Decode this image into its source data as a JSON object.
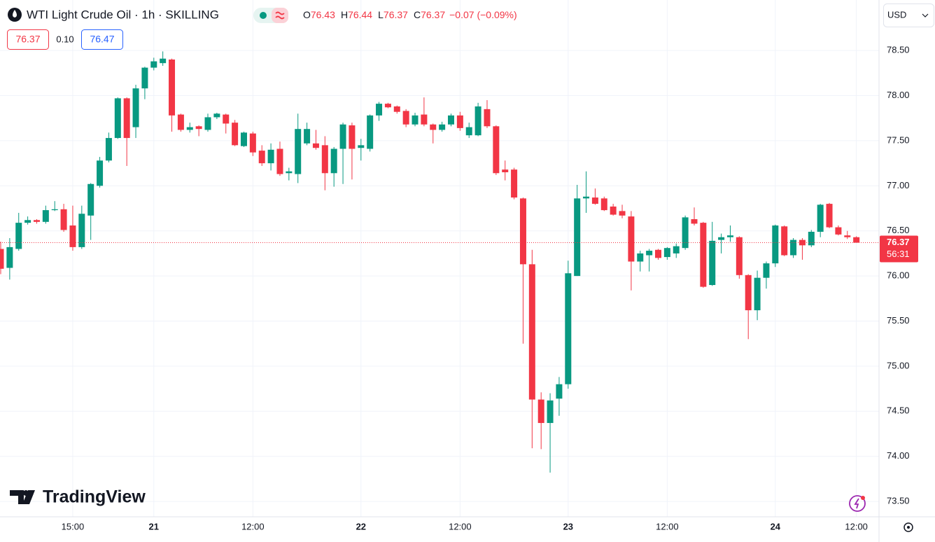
{
  "header": {
    "title": "WTI Light Crude Oil · 1h · SKILLING",
    "ohlc_labels": [
      "O",
      "H",
      "L",
      "C"
    ],
    "change": "−0.07 (−0.09%)",
    "bid": "76.37",
    "spread": "0.10",
    "ask": "76.47",
    "currency": "USD",
    "countdown": "56:31",
    "brand": "TradingView"
  },
  "chart_data": {
    "type": "candlestick",
    "up_color": "#089981",
    "down_color": "#f23645",
    "grid": true,
    "ylim": [
      73.33,
      79.06
    ],
    "yticks": [
      {
        "value": 73.5,
        "label": "73.50"
      },
      {
        "value": 74,
        "label": "74.00"
      },
      {
        "value": 74.5,
        "label": "74.50"
      },
      {
        "value": 75,
        "label": "75.00"
      },
      {
        "value": 75.5,
        "label": "75.50"
      },
      {
        "value": 76,
        "label": "76.00"
      },
      {
        "value": 76.5,
        "label": "76.50"
      },
      {
        "value": 77,
        "label": "77.00"
      },
      {
        "value": 77.5,
        "label": "77.50"
      },
      {
        "value": 78,
        "label": "78.00"
      },
      {
        "value": 78.5,
        "label": "78.50"
      }
    ],
    "categories": [
      null,
      null,
      null,
      null,
      null,
      null,
      null,
      null,
      "15:00",
      null,
      null,
      null,
      null,
      null,
      null,
      null,
      null,
      "21",
      null,
      null,
      null,
      null,
      null,
      null,
      null,
      null,
      null,
      null,
      "12:00",
      null,
      null,
      null,
      null,
      null,
      null,
      null,
      null,
      null,
      null,
      null,
      "22",
      null,
      null,
      null,
      null,
      null,
      null,
      null,
      null,
      null,
      null,
      "12:00",
      null,
      null,
      null,
      null,
      null,
      null,
      null,
      null,
      null,
      null,
      null,
      "23",
      null,
      null,
      null,
      null,
      null,
      null,
      null,
      null,
      null,
      null,
      "12:00",
      null,
      null,
      null,
      null,
      null,
      null,
      null,
      null,
      null,
      null,
      null,
      "24",
      null,
      null,
      null,
      null,
      null,
      null,
      null,
      null,
      "12:00"
    ],
    "open": [
      76.3,
      76.09,
      76.3,
      76.59,
      76.62,
      76.6,
      76.73,
      76.74,
      76.56,
      76.32,
      76.67,
      77.0,
      77.28,
      77.53,
      77.97,
      77.65,
      78.08,
      78.31,
      78.36,
      78.4,
      77.79,
      77.62,
      77.66,
      77.62,
      77.76,
      77.79,
      77.7,
      77.44,
      77.58,
      77.39,
      77.25,
      77.41,
      77.14,
      77.13,
      77.47,
      77.47,
      77.45,
      77.14,
      77.41,
      77.67,
      77.42,
      77.41,
      77.78,
      77.91,
      77.88,
      77.83,
      77.68,
      77.79,
      77.68,
      77.62,
      77.68,
      77.78,
      77.56,
      77.56,
      77.85,
      77.66,
      77.18,
      77.18,
      76.86,
      76.13,
      74.63,
      74.37,
      74.64,
      74.8,
      76.0,
      76.86,
      76.87,
      76.86,
      76.77,
      76.72,
      76.66,
      76.16,
      76.23,
      76.29,
      76.21,
      76.25,
      76.31,
      76.63,
      76.59,
      75.9,
      76.4,
      76.43,
      76.43,
      76.01,
      75.62,
      75.98,
      76.14,
      76.55,
      76.23,
      76.4,
      76.34,
      76.49,
      76.8,
      76.54,
      76.45,
      76.43
    ],
    "high": [
      76.38,
      76.42,
      76.7,
      76.66,
      76.63,
      76.78,
      76.83,
      76.8,
      76.78,
      76.78,
      77.03,
      77.32,
      77.59,
      77.98,
      77.98,
      78.12,
      78.32,
      78.42,
      78.49,
      78.41,
      77.8,
      77.7,
      77.67,
      77.8,
      77.81,
      77.8,
      77.73,
      77.6,
      77.6,
      77.45,
      77.47,
      77.49,
      77.2,
      77.8,
      77.7,
      77.62,
      77.55,
      77.43,
      77.7,
      77.7,
      77.52,
      77.79,
      77.93,
      77.92,
      77.89,
      77.85,
      77.81,
      77.98,
      77.69,
      77.71,
      77.8,
      77.82,
      77.7,
      77.92,
      77.95,
      77.67,
      77.28,
      77.2,
      76.87,
      76.29,
      74.71,
      74.7,
      74.88,
      76.17,
      77.01,
      77.16,
      76.97,
      76.88,
      76.8,
      76.79,
      76.72,
      76.28,
      76.3,
      76.3,
      76.32,
      76.36,
      76.67,
      76.76,
      76.6,
      76.6,
      76.47,
      76.56,
      76.44,
      76.02,
      76.06,
      76.16,
      76.57,
      76.56,
      76.42,
      76.42,
      76.51,
      76.8,
      76.81,
      76.56,
      76.5,
      76.44
    ],
    "low": [
      76.02,
      75.96,
      76.28,
      76.57,
      76.58,
      76.58,
      76.72,
      76.49,
      76.28,
      76.3,
      76.4,
      76.98,
      77.26,
      77.52,
      77.22,
      77.53,
      77.96,
      78.28,
      78.33,
      77.6,
      77.6,
      77.59,
      77.55,
      77.6,
      77.74,
      77.58,
      77.44,
      77.43,
      77.33,
      77.22,
      77.17,
      77.11,
      77.06,
      77.03,
      77.45,
      77.4,
      76.95,
      76.99,
      77.02,
      77.07,
      77.28,
      77.38,
      77.72,
      77.86,
      77.8,
      77.65,
      77.66,
      77.66,
      77.47,
      77.6,
      77.66,
      77.61,
      77.53,
      77.55,
      77.64,
      77.12,
      77.06,
      76.85,
      75.25,
      74.09,
      74.08,
      73.82,
      74.45,
      74.75,
      76.0,
      76.7,
      76.79,
      76.72,
      76.67,
      76.64,
      75.84,
      76.05,
      76.05,
      76.18,
      76.18,
      76.2,
      76.29,
      76.56,
      75.87,
      75.89,
      76.25,
      76.38,
      75.97,
      75.3,
      75.51,
      75.86,
      76.1,
      76.22,
      76.2,
      76.18,
      76.32,
      76.43,
      76.53,
      76.45,
      76.41,
      76.37
    ],
    "close": [
      76.08,
      76.32,
      76.59,
      76.62,
      76.6,
      76.73,
      76.74,
      76.51,
      76.32,
      76.69,
      77.02,
      77.28,
      77.53,
      77.97,
      77.53,
      78.08,
      78.31,
      78.38,
      78.41,
      77.78,
      77.62,
      77.65,
      77.63,
      77.76,
      77.8,
      77.69,
      77.45,
      77.59,
      77.37,
      77.25,
      77.4,
      77.13,
      77.16,
      77.63,
      77.63,
      77.42,
      77.14,
      77.41,
      77.68,
      77.41,
      77.45,
      77.78,
      77.91,
      77.87,
      77.82,
      77.68,
      77.78,
      77.68,
      77.62,
      77.68,
      77.78,
      77.64,
      77.65,
      77.88,
      77.66,
      77.14,
      77.15,
      76.87,
      76.13,
      74.63,
      74.37,
      74.62,
      74.8,
      76.03,
      76.86,
      76.88,
      76.8,
      76.73,
      76.68,
      76.67,
      76.16,
      76.25,
      76.28,
      76.2,
      76.31,
      76.33,
      76.65,
      76.58,
      75.88,
      76.39,
      76.43,
      76.45,
      76.01,
      75.62,
      75.98,
      76.14,
      76.56,
      76.23,
      76.4,
      76.34,
      76.49,
      76.79,
      76.54,
      76.46,
      76.43,
      76.37
    ]
  }
}
